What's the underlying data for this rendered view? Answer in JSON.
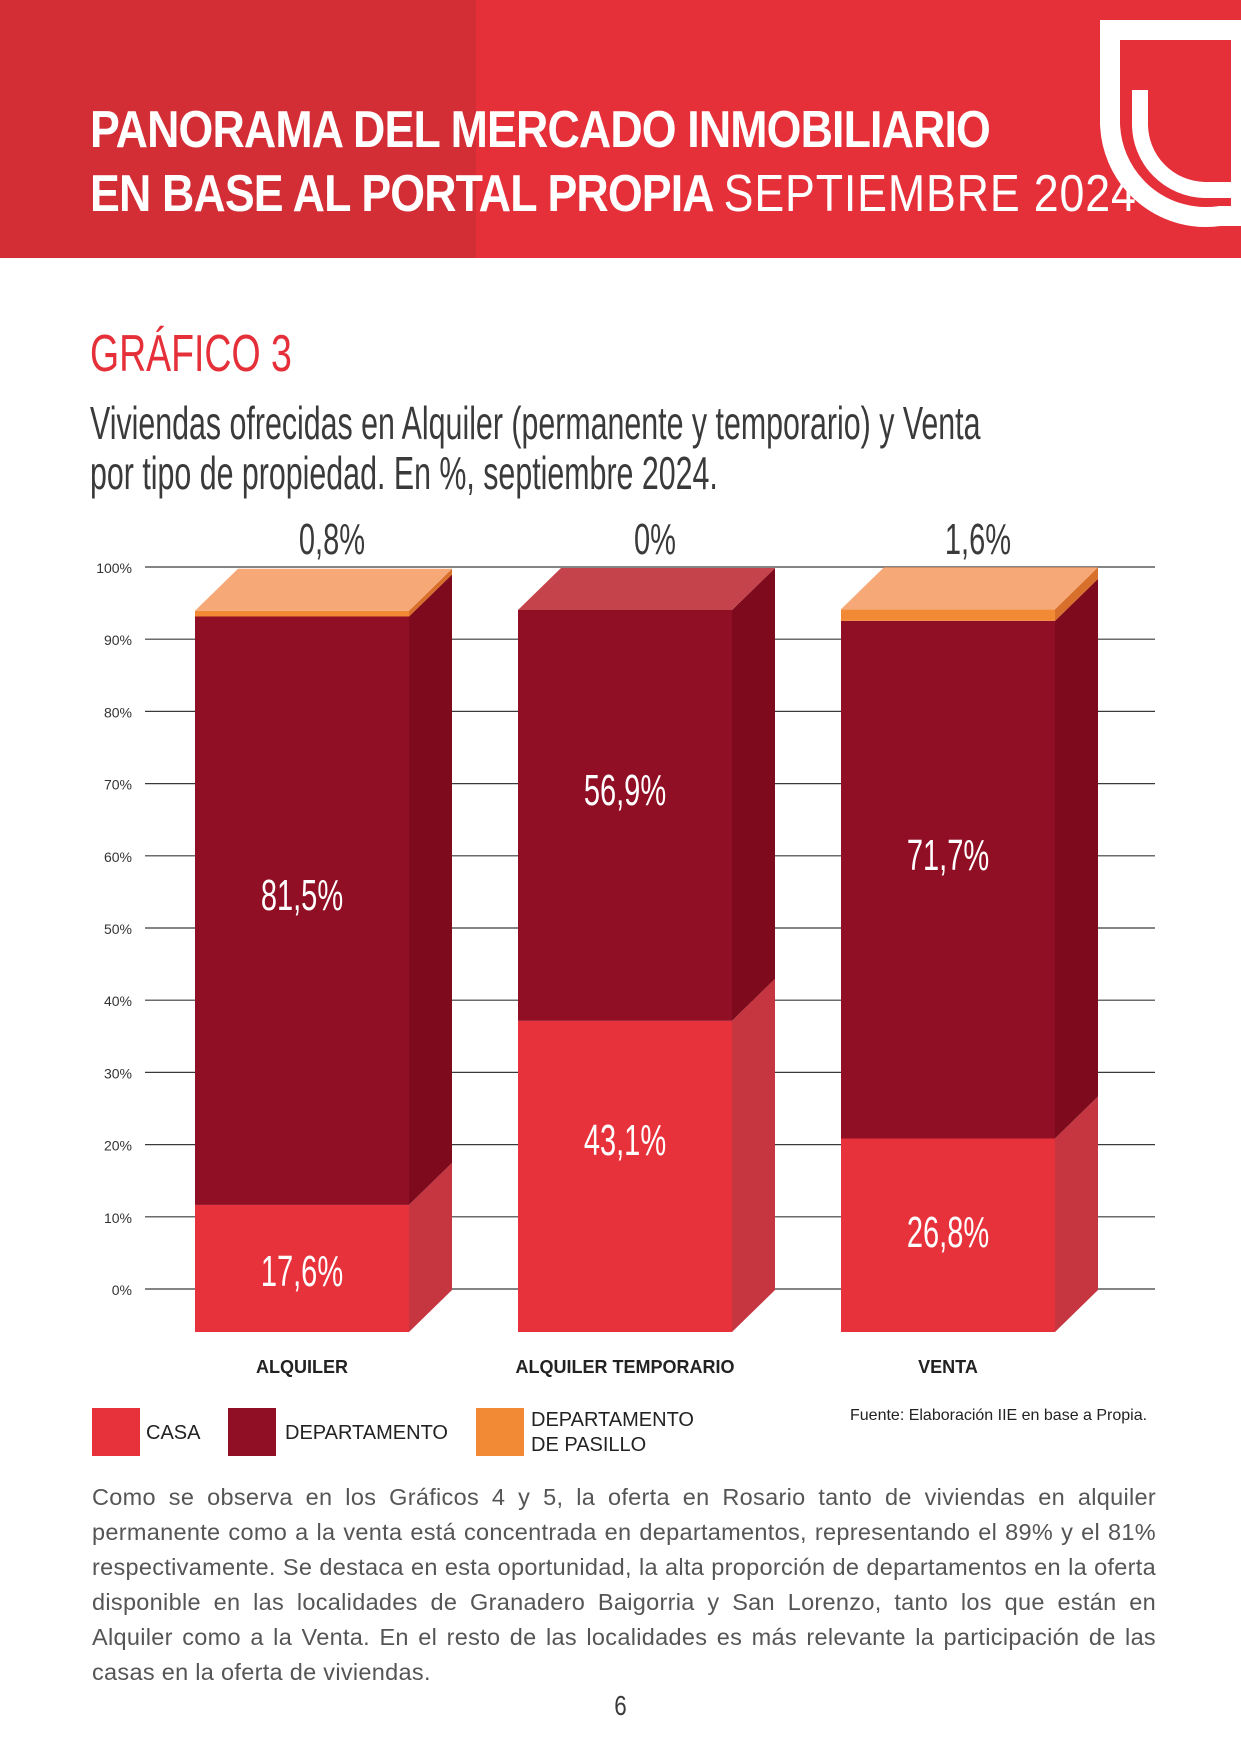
{
  "header": {
    "title_line1": "PANORAMA DEL MERCADO INMOBILIARIO",
    "title_line2": "EN BASE AL PORTAL PROPIA",
    "title_period": "SEPTIEMBRE 2024"
  },
  "chart_heading": {
    "kicker": "GRÁFICO 3",
    "title": "Viviendas ofrecidas en Alquiler (permanente y temporario) y Venta por tipo de propiedad. En %, septiembre 2024."
  },
  "colors": {
    "brand": "#e5303a",
    "casa": "#e8323b",
    "departamento": "#900f25",
    "departamento_pasillo": "#f28a35"
  },
  "chart_data": {
    "type": "bar",
    "stacked": true,
    "categories": [
      "ALQUILER",
      "ALQUILER TEMPORARIO",
      "VENTA"
    ],
    "series": [
      {
        "name": "CASA",
        "values": [
          17.6,
          43.1,
          26.8
        ],
        "labels": [
          "17,6%",
          "43,1%",
          "26,8%"
        ]
      },
      {
        "name": "DEPARTAMENTO",
        "values": [
          81.5,
          56.9,
          71.7
        ],
        "labels": [
          "81,5%",
          "56,9%",
          "71,7%"
        ]
      },
      {
        "name": "DEPARTAMENTO DE PASILLO",
        "values": [
          0.8,
          0,
          1.6
        ],
        "labels": [
          "0,8%",
          "0%",
          "1,6%"
        ]
      }
    ],
    "yticks": [
      "0%",
      "10%",
      "20%",
      "30%",
      "40%",
      "50%",
      "60%",
      "70%",
      "80%",
      "90%",
      "100%"
    ],
    "ylim": [
      0,
      100
    ],
    "grid": true,
    "legend_position": "bottom-left"
  },
  "legend": {
    "casa": "CASA",
    "departamento": "DEPARTAMENTO",
    "pasillo_line1": "DEPARTAMENTO",
    "pasillo_line2": "DE PASILLO"
  },
  "source": "Fuente: Elaboración IIE en base a Propia.",
  "paragraph": "Como se observa en los Gráficos 4 y 5, la oferta en Rosario tanto de viviendas en alquiler permanente como a la venta está concentrada en departamentos, representando el 89% y el 81% respectivamente. Se destaca en esta oportunidad, la alta proporción de departamentos en la oferta disponible en las localidades de Granadero Baigorria y San Lorenzo, tanto los que están en Alquiler como a la Venta. En el resto de las localidades es más relevante la participación de las casas en la oferta de viviendas.",
  "page_number": "6"
}
